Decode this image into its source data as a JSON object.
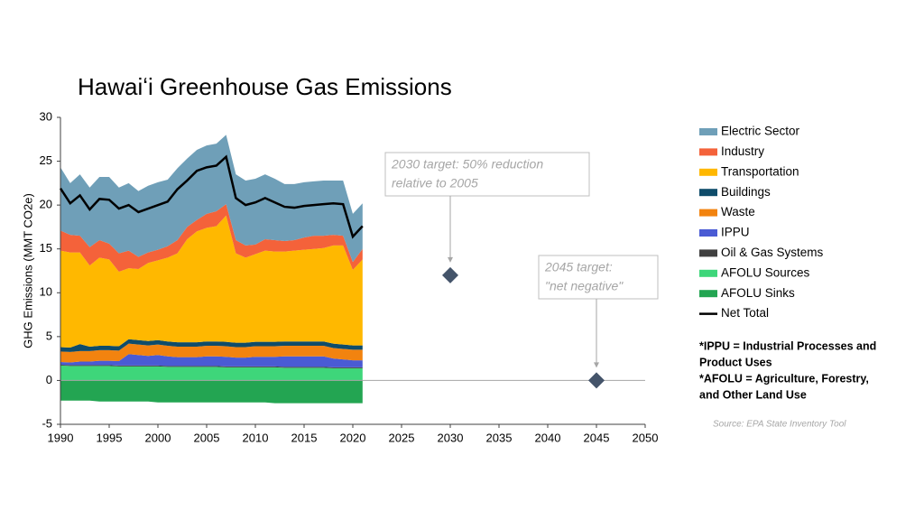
{
  "chart_data": {
    "type": "area",
    "title": "Hawaiʻi Greenhouse Gas Emissions",
    "y_label": "GHG Emissions (MMT CO2e)",
    "xlim": [
      1990,
      2050
    ],
    "xticks": [
      1990,
      1995,
      2000,
      2005,
      2010,
      2015,
      2020,
      2025,
      2030,
      2035,
      2040,
      2045,
      2050
    ],
    "ylim": [
      -5,
      30
    ],
    "yticks": [
      -5,
      0,
      5,
      10,
      15,
      20,
      25,
      30
    ],
    "x": [
      1990,
      1991,
      1992,
      1993,
      1994,
      1995,
      1996,
      1997,
      1998,
      1999,
      2000,
      2001,
      2002,
      2003,
      2004,
      2005,
      2006,
      2007,
      2008,
      2009,
      2010,
      2011,
      2012,
      2013,
      2014,
      2015,
      2016,
      2017,
      2018,
      2019,
      2020,
      2021
    ],
    "series": [
      {
        "name": "AFOLU Sinks",
        "type": "area",
        "color": "#23a552",
        "values": [
          -2.3,
          -2.3,
          -2.3,
          -2.3,
          -2.4,
          -2.4,
          -2.4,
          -2.4,
          -2.4,
          -2.4,
          -2.5,
          -2.5,
          -2.5,
          -2.5,
          -2.5,
          -2.5,
          -2.5,
          -2.5,
          -2.5,
          -2.5,
          -2.5,
          -2.5,
          -2.6,
          -2.6,
          -2.6,
          -2.6,
          -2.6,
          -2.6,
          -2.6,
          -2.6,
          -2.6,
          -2.6
        ]
      },
      {
        "name": "AFOLU Sources",
        "type": "area",
        "color": "#3ed67a",
        "values": [
          1.7,
          1.65,
          1.65,
          1.65,
          1.65,
          1.65,
          1.6,
          1.6,
          1.6,
          1.6,
          1.6,
          1.55,
          1.55,
          1.55,
          1.55,
          1.55,
          1.55,
          1.5,
          1.5,
          1.5,
          1.5,
          1.5,
          1.5,
          1.45,
          1.45,
          1.45,
          1.45,
          1.45,
          1.4,
          1.4,
          1.4,
          1.4
        ]
      },
      {
        "name": "Oil & Gas Systems",
        "type": "area",
        "color": "#404040",
        "values": [
          0.1,
          0.1,
          0.1,
          0.1,
          0.1,
          0.1,
          0.1,
          0.1,
          0.1,
          0.1,
          0.1,
          0.1,
          0.1,
          0.1,
          0.1,
          0.1,
          0.1,
          0.1,
          0.1,
          0.1,
          0.1,
          0.1,
          0.1,
          0.1,
          0.1,
          0.1,
          0.1,
          0.1,
          0.1,
          0.1,
          0.1,
          0.1
        ]
      },
      {
        "name": "IPPU",
        "type": "area",
        "color": "#4a5bd4",
        "values": [
          0.3,
          0.3,
          0.4,
          0.4,
          0.5,
          0.5,
          0.5,
          1.3,
          1.2,
          1.1,
          1.2,
          1.1,
          1.0,
          1.0,
          1.0,
          1.1,
          1.1,
          1.1,
          1.0,
          1.0,
          1.1,
          1.1,
          1.1,
          1.2,
          1.2,
          1.2,
          1.2,
          1.2,
          1.0,
          0.9,
          0.8,
          0.8
        ]
      },
      {
        "name": "Waste",
        "type": "area",
        "color": "#f2830f",
        "values": [
          1.2,
          1.2,
          1.2,
          1.2,
          1.2,
          1.2,
          1.2,
          1.2,
          1.2,
          1.2,
          1.2,
          1.2,
          1.2,
          1.2,
          1.2,
          1.2,
          1.2,
          1.2,
          1.2,
          1.2,
          1.2,
          1.2,
          1.2,
          1.2,
          1.2,
          1.2,
          1.2,
          1.2,
          1.2,
          1.2,
          1.2,
          1.2
        ]
      },
      {
        "name": "Buildings",
        "type": "area",
        "color": "#0f4c6a",
        "values": [
          0.5,
          0.5,
          0.8,
          0.5,
          0.5,
          0.5,
          0.5,
          0.5,
          0.5,
          0.5,
          0.5,
          0.5,
          0.5,
          0.5,
          0.5,
          0.5,
          0.5,
          0.5,
          0.5,
          0.5,
          0.5,
          0.5,
          0.5,
          0.5,
          0.5,
          0.5,
          0.5,
          0.5,
          0.5,
          0.5,
          0.5,
          0.5
        ]
      },
      {
        "name": "Transportation",
        "type": "area",
        "color": "#ffb800",
        "values": [
          11.0,
          10.85,
          10.45,
          9.25,
          10.05,
          9.85,
          8.5,
          8.1,
          8.1,
          8.9,
          9.1,
          9.55,
          10.15,
          11.75,
          12.65,
          12.95,
          13.15,
          14.4,
          10.2,
          9.7,
          10.0,
          10.4,
          10.3,
          10.25,
          10.35,
          10.45,
          10.55,
          10.65,
          11.2,
          11.3,
          8.6,
          9.8
        ]
      },
      {
        "name": "Industry",
        "type": "area",
        "color": "#f4623a",
        "values": [
          2.3,
          2.0,
          1.9,
          2.1,
          2.0,
          1.8,
          2.1,
          2.0,
          1.4,
          1.2,
          1.2,
          1.3,
          1.5,
          1.4,
          1.3,
          1.6,
          1.7,
          1.3,
          1.5,
          1.4,
          1.1,
          1.3,
          1.3,
          1.2,
          1.2,
          1.4,
          1.5,
          1.4,
          1.2,
          1.1,
          0.9,
          1.2
        ]
      },
      {
        "name": "Electric Sector",
        "type": "area",
        "color": "#6f9fb8",
        "values": [
          7.2,
          5.9,
          7.0,
          6.8,
          7.2,
          7.6,
          7.5,
          7.7,
          7.5,
          7.6,
          7.7,
          7.6,
          8.2,
          7.8,
          8.0,
          7.8,
          7.7,
          7.9,
          7.5,
          7.4,
          7.5,
          7.4,
          7.0,
          6.5,
          6.4,
          6.3,
          6.2,
          6.3,
          6.2,
          6.3,
          5.5,
          5.2
        ]
      },
      {
        "name": "Net Total",
        "type": "line",
        "color": "#000000",
        "values": [
          21.9,
          20.2,
          21.1,
          19.5,
          20.7,
          20.6,
          19.6,
          20.0,
          19.2,
          19.6,
          20.0,
          20.4,
          21.8,
          22.8,
          23.9,
          24.3,
          24.5,
          25.5,
          20.8,
          20.0,
          20.3,
          20.8,
          20.3,
          19.8,
          19.7,
          19.9,
          20.0,
          20.1,
          20.2,
          20.1,
          16.4,
          17.6
        ]
      }
    ],
    "legend_order": [
      8,
      7,
      6,
      5,
      4,
      3,
      2,
      1,
      0,
      9
    ],
    "targets": {
      "color": "#44546a",
      "x": [
        2030,
        2045
      ],
      "values": [
        12,
        0
      ],
      "labels": [
        [
          "2030 target: 50% reduction",
          "relative to 2005"
        ],
        [
          "2045 target:",
          "\"net negative\""
        ]
      ]
    },
    "notes": [
      [
        "*IPPU = Industrial Processes and",
        "Product Uses"
      ],
      [
        "*AFOLU = Agriculture, Forestry,",
        "and Other Land Use"
      ]
    ],
    "source": "Source: EPA State Inventory Tool"
  }
}
